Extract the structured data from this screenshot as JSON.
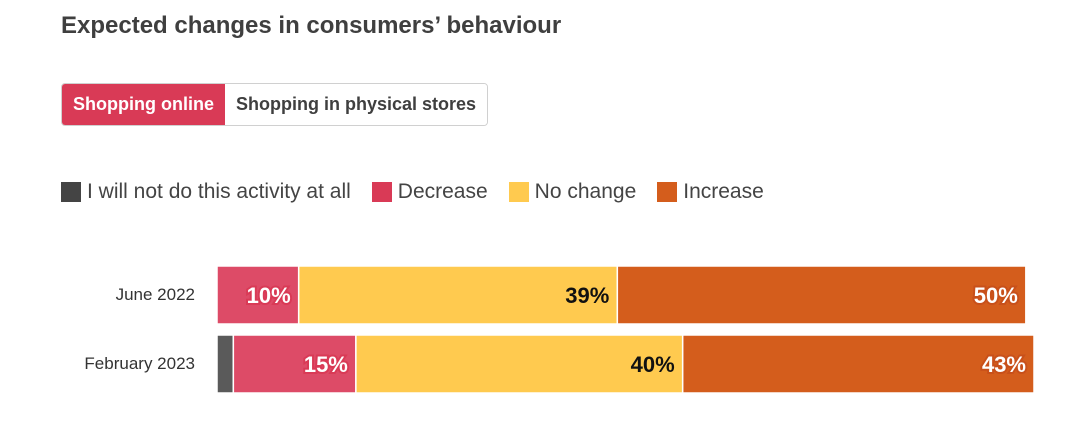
{
  "title": "Expected changes in consumers’ behaviour",
  "tabs": [
    {
      "label": "Shopping online",
      "active": true
    },
    {
      "label": "Shopping in physical stores",
      "active": false
    }
  ],
  "chart_data": {
    "type": "bar",
    "orientation": "horizontal",
    "stacked": true,
    "categories": [
      "June 2022",
      "February 2023"
    ],
    "series": [
      {
        "name": "I will not do this activity at all",
        "color": "#444444",
        "values": [
          0,
          2
        ]
      },
      {
        "name": "Decrease",
        "color": "#d93a56",
        "values": [
          10,
          15
        ]
      },
      {
        "name": "No change",
        "color": "#ffca4f",
        "values": [
          39,
          40
        ]
      },
      {
        "name": "Increase",
        "color": "#d45d1c",
        "values": [
          50,
          43
        ]
      }
    ],
    "data_labels": [
      [
        "",
        "10%",
        "39%",
        "50%"
      ],
      [
        "",
        "15%",
        "40%",
        "43%"
      ]
    ],
    "legend": "top-left",
    "grid": false,
    "xlim": [
      0,
      100
    ]
  }
}
